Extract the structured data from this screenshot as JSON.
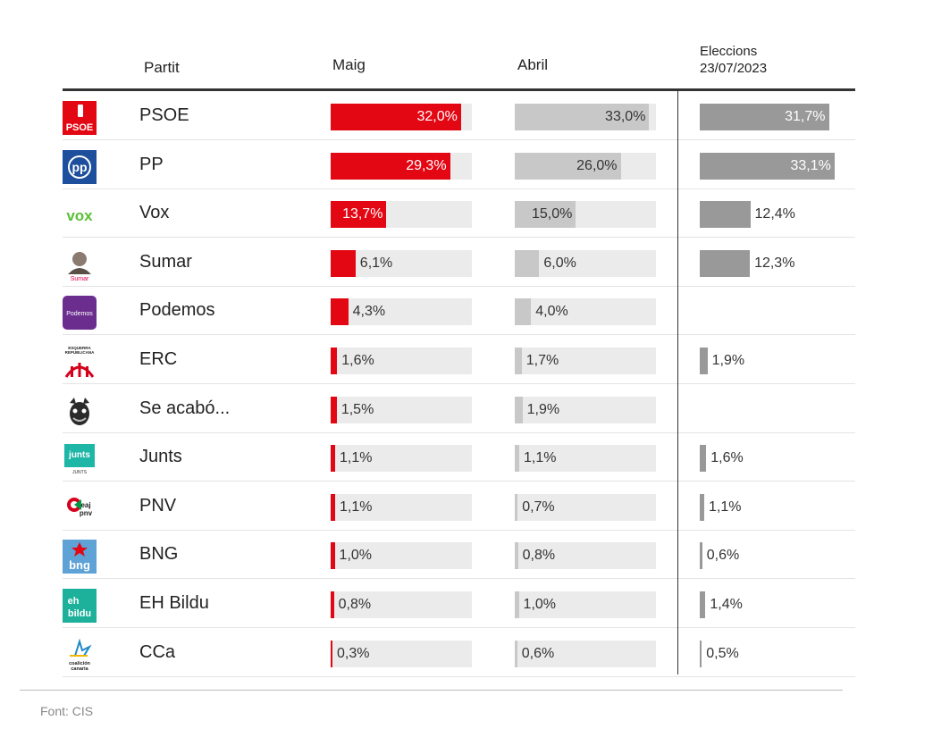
{
  "header": {
    "party": "Partit",
    "may": "Maig",
    "april": "Abril",
    "elections_line1": "Eleccions",
    "elections_line2": "23/07/2023"
  },
  "colors": {
    "may": "#e30613",
    "april": "#c8c8c8",
    "elections": "#999999",
    "track": "#ebebeb"
  },
  "chart_data": {
    "type": "bar",
    "title": "",
    "unit": "%",
    "categories": [
      "PSOE",
      "PP",
      "Vox",
      "Sumar",
      "Podemos",
      "ERC",
      "Se acabó...",
      "Junts",
      "PNV",
      "BNG",
      "EH Bildu",
      "CCa"
    ],
    "series": [
      {
        "name": "Maig",
        "values": [
          32.0,
          29.3,
          13.7,
          6.1,
          4.3,
          1.6,
          1.5,
          1.1,
          1.1,
          1.0,
          0.8,
          0.3
        ],
        "labels": [
          "32,0%",
          "29,3%",
          "13,7%",
          "6,1%",
          "4,3%",
          "1,6%",
          "1,5%",
          "1,1%",
          "1,1%",
          "1,0%",
          "0,8%",
          "0,3%"
        ]
      },
      {
        "name": "Abril",
        "values": [
          33.0,
          26.0,
          15.0,
          6.0,
          4.0,
          1.7,
          1.9,
          1.1,
          0.7,
          0.8,
          1.0,
          0.6
        ],
        "labels": [
          "33,0%",
          "26,0%",
          "15,0%",
          "6,0%",
          "4,0%",
          "1,7%",
          "1,9%",
          "1,1%",
          "0,7%",
          "0,8%",
          "1,0%",
          "0,6%"
        ]
      },
      {
        "name": "Eleccions 23/07/2023",
        "values": [
          31.7,
          33.1,
          12.4,
          12.3,
          null,
          1.9,
          null,
          1.6,
          1.1,
          0.6,
          1.4,
          0.5
        ],
        "labels": [
          "31,7%",
          "33,1%",
          "12,4%",
          "12,3%",
          null,
          "1,9%",
          null,
          "1,6%",
          "1,1%",
          "0,6%",
          "1,4%",
          "0,5%"
        ]
      }
    ],
    "scale_max": 33.1
  },
  "logos": {
    "PSOE": {
      "icon": "psoe-logo",
      "text": "PSOE"
    },
    "PP": {
      "icon": "pp-logo",
      "text": "pp"
    },
    "Vox": {
      "icon": "vox-logo",
      "text": "vox"
    },
    "Sumar": {
      "icon": "sumar-logo",
      "text": "Sumar"
    },
    "Podemos": {
      "icon": "podemos-logo",
      "text": "Podemos"
    },
    "ERC": {
      "icon": "erc-logo",
      "text": "ESQUERRA REPUBLICANA"
    },
    "Se acabó...": {
      "icon": "se-acabo-logo",
      "text": ""
    },
    "Junts": {
      "icon": "junts-logo",
      "text": "junts"
    },
    "PNV": {
      "icon": "pnv-logo",
      "text": "eaj pnv"
    },
    "BNG": {
      "icon": "bng-logo",
      "text": "bng"
    },
    "EH Bildu": {
      "icon": "eh-bildu-logo",
      "text": "eh bildu"
    },
    "CCa": {
      "icon": "cca-logo",
      "text": "coalición canaria"
    }
  },
  "footer": {
    "source": "Font: CIS"
  }
}
